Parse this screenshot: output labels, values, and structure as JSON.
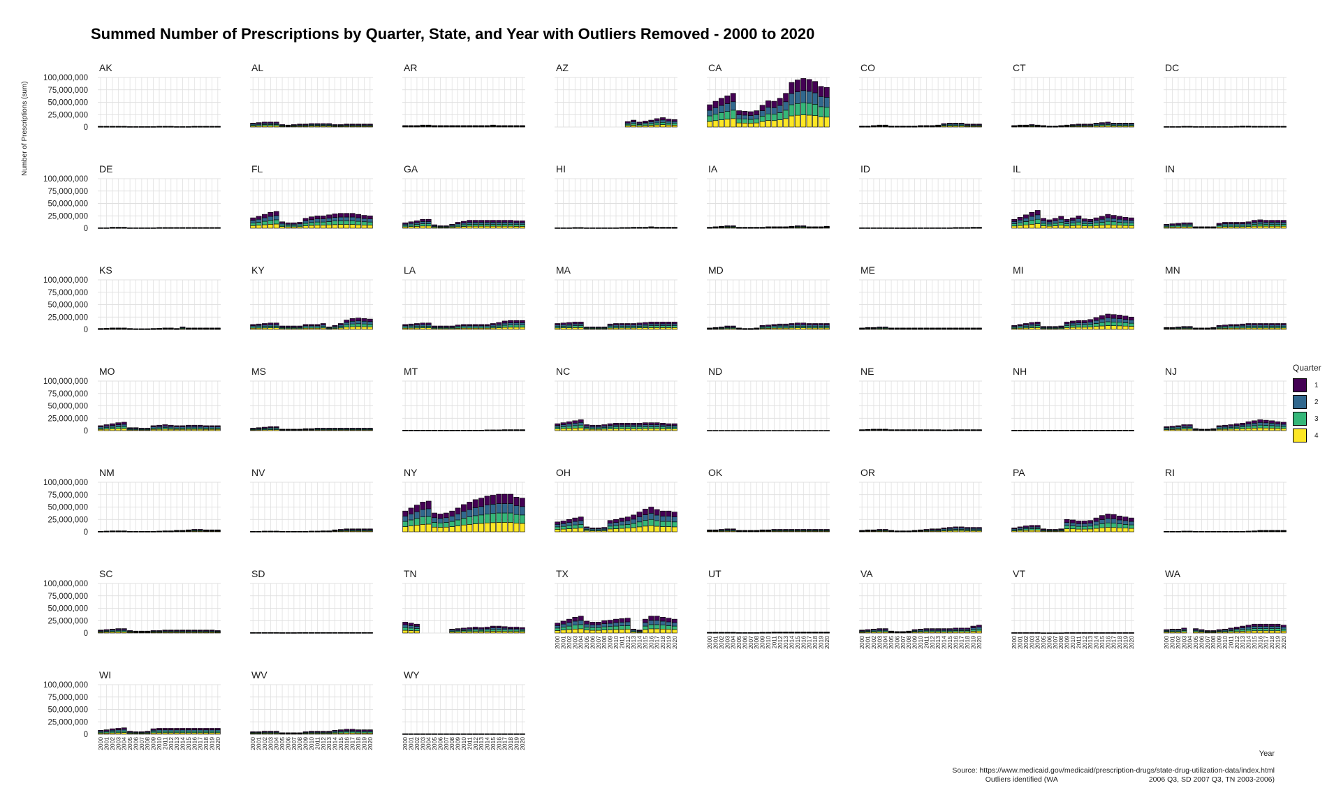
{
  "title": "Summed Number of Prescriptions by Quarter, State, and Year with Outliers Removed - 2000 to 2020",
  "caption": {
    "source": "Source: https://www.medicaid.gov/medicaid/prescription-drugs/state-drug-utilization-data/index.html",
    "outliers_left": "Outliers identified (WA",
    "outliers_right": "2006 Q3, SD 2007 Q3, TN 2003-2006)"
  },
  "chart_data": {
    "type": "bar",
    "stacked": true,
    "faceted": true,
    "xlabel": "Year",
    "ylabel": "Number of Prescriptions (sum)",
    "ylim": [
      0,
      100000000
    ],
    "y_ticks": [
      0,
      25000000,
      50000000,
      75000000,
      100000000
    ],
    "y_tick_labels": [
      "0",
      "25,000,000",
      "50,000,000",
      "75,000,000",
      "100,000,000"
    ],
    "x": [
      "2000",
      "2001",
      "2002",
      "2003",
      "2004",
      "2005",
      "2006",
      "2007",
      "2008",
      "2009",
      "2010",
      "2011",
      "2012",
      "2013",
      "2014",
      "2015",
      "2016",
      "2017",
      "2018",
      "2019",
      "2020"
    ],
    "grid": true,
    "legend": {
      "title": "Quarter",
      "position": "right",
      "entries": [
        {
          "label": "1",
          "color": "#440154"
        },
        {
          "label": "2",
          "color": "#31688e"
        },
        {
          "label": "3",
          "color": "#35b779"
        },
        {
          "label": "4",
          "color": "#fde725"
        }
      ]
    },
    "stack_note": "Each value is the annual total (millions); stacked into four roughly equal quarter segments, quarter 4 at the bottom.",
    "facets": [
      {
        "state": "AK",
        "totals": [
          1.5,
          1.5,
          1.5,
          1.5,
          1.5,
          1,
          1,
          1,
          1,
          1,
          1.5,
          1.5,
          1.5,
          1,
          1,
          1,
          1.5,
          1.5,
          1.5,
          1.5,
          1.5
        ]
      },
      {
        "state": "AL",
        "totals": [
          8,
          9,
          10,
          10,
          10,
          5,
          4,
          5,
          6,
          6,
          7,
          7,
          7,
          7,
          5,
          5,
          6,
          6,
          6,
          6,
          6
        ]
      },
      {
        "state": "AR",
        "totals": [
          3,
          3,
          3,
          4,
          4,
          3,
          3,
          3,
          3,
          3,
          3,
          3,
          3,
          3,
          3,
          4,
          3,
          3,
          3,
          3,
          3
        ]
      },
      {
        "state": "AZ",
        "totals": [
          0,
          0,
          0,
          0,
          0,
          0,
          0,
          0,
          0,
          0,
          0,
          0,
          11,
          14,
          10,
          12,
          14,
          17,
          19,
          16,
          15
        ]
      },
      {
        "state": "CA",
        "totals": [
          45,
          52,
          58,
          63,
          68,
          33,
          32,
          31,
          33,
          44,
          53,
          52,
          58,
          68,
          90,
          95,
          98,
          96,
          92,
          82,
          80
        ]
      },
      {
        "state": "CO",
        "totals": [
          2,
          2,
          3,
          4,
          4,
          2,
          2,
          2,
          2,
          2,
          3,
          3,
          3,
          4,
          7,
          8,
          8,
          8,
          6,
          6,
          6
        ]
      },
      {
        "state": "CT",
        "totals": [
          3,
          4,
          4,
          5,
          4,
          3,
          2,
          2,
          3,
          4,
          5,
          6,
          6,
          6,
          8,
          9,
          10,
          8,
          8,
          8,
          8
        ]
      },
      {
        "state": "DC",
        "totals": [
          1,
          1,
          1,
          1.5,
          1.5,
          1,
          1,
          1,
          1,
          1,
          1,
          1,
          1.5,
          2,
          2,
          1.5,
          1.5,
          1.5,
          1.5,
          1.5,
          1.5
        ]
      },
      {
        "state": "DE",
        "totals": [
          1,
          1,
          2,
          2,
          2,
          1,
          1,
          1,
          1,
          1,
          1.5,
          1.5,
          1.5,
          1.5,
          1.5,
          1.5,
          1.5,
          1.5,
          1.5,
          1.5,
          1.5
        ]
      },
      {
        "state": "FL",
        "totals": [
          21,
          24,
          28,
          32,
          34,
          13,
          11,
          11,
          12,
          20,
          23,
          25,
          25,
          27,
          29,
          30,
          30,
          30,
          28,
          26,
          25
        ]
      },
      {
        "state": "GA",
        "totals": [
          11,
          13,
          15,
          18,
          18,
          7,
          5,
          5,
          8,
          12,
          14,
          16,
          16,
          16,
          16,
          16,
          16,
          16,
          16,
          15,
          15
        ]
      },
      {
        "state": "HI",
        "totals": [
          1,
          1,
          1,
          1.5,
          1.5,
          1,
          1,
          1,
          1,
          1,
          1,
          1.5,
          1.5,
          2,
          2,
          2,
          3,
          2,
          2,
          2,
          2
        ]
      },
      {
        "state": "IA",
        "totals": [
          2,
          3,
          4,
          5,
          5,
          2,
          2,
          2,
          2,
          2,
          3,
          3,
          3,
          3,
          4,
          5,
          5,
          3,
          3,
          3,
          4
        ]
      },
      {
        "state": "ID",
        "totals": [
          1,
          1,
          1,
          1,
          1,
          1,
          0.8,
          0.8,
          0.8,
          1,
          1,
          1,
          1,
          1,
          1,
          1,
          1.5,
          1.5,
          1.5,
          2,
          2
        ]
      },
      {
        "state": "IL",
        "totals": [
          18,
          22,
          27,
          32,
          36,
          20,
          17,
          20,
          24,
          18,
          21,
          25,
          19,
          18,
          21,
          24,
          28,
          26,
          24,
          22,
          21
        ]
      },
      {
        "state": "IN",
        "totals": [
          8,
          9,
          10,
          11,
          11,
          3,
          3,
          3,
          3,
          10,
          12,
          12,
          12,
          12,
          13,
          16,
          17,
          16,
          16,
          16,
          16
        ]
      },
      {
        "state": "KS",
        "totals": [
          2,
          2.5,
          3,
          3,
          3,
          2,
          1.5,
          1.5,
          1.5,
          2,
          2.5,
          3,
          3,
          2,
          5,
          3,
          3,
          3,
          3,
          3,
          3
        ]
      },
      {
        "state": "KY",
        "totals": [
          10,
          11,
          12,
          13,
          13,
          7,
          7,
          7,
          7,
          10,
          10,
          10,
          12,
          5,
          8,
          12,
          19,
          22,
          23,
          22,
          21
        ]
      },
      {
        "state": "LA",
        "totals": [
          10,
          11,
          12,
          13,
          13,
          7,
          7,
          7,
          7,
          9,
          10,
          10,
          10,
          10,
          10,
          12,
          14,
          17,
          18,
          18,
          18
        ]
      },
      {
        "state": "MA",
        "totals": [
          12,
          13,
          14,
          15,
          15,
          5,
          5,
          5,
          5,
          11,
          12,
          12,
          12,
          12,
          13,
          14,
          15,
          15,
          15,
          15,
          15
        ]
      },
      {
        "state": "MD",
        "totals": [
          3,
          4,
          5,
          7,
          7,
          3,
          2,
          2,
          3,
          8,
          9,
          10,
          11,
          11,
          12,
          13,
          13,
          12,
          12,
          12,
          12
        ]
      },
      {
        "state": "ME",
        "totals": [
          3,
          4,
          4,
          5,
          5,
          3,
          3,
          3,
          3,
          3,
          3,
          3,
          3,
          3,
          3,
          3,
          3,
          3,
          3,
          3,
          3
        ]
      },
      {
        "state": "MI",
        "totals": [
          8,
          10,
          12,
          14,
          15,
          6,
          6,
          6,
          7,
          15,
          17,
          18,
          18,
          20,
          24,
          28,
          31,
          30,
          29,
          27,
          25
        ]
      },
      {
        "state": "MN",
        "totals": [
          4,
          4,
          5,
          6,
          6,
          3,
          3,
          3,
          4,
          8,
          9,
          10,
          10,
          11,
          12,
          12,
          12,
          12,
          12,
          12,
          12
        ]
      },
      {
        "state": "MO",
        "totals": [
          10,
          12,
          14,
          16,
          17,
          6,
          6,
          5,
          5,
          10,
          11,
          12,
          11,
          10,
          10,
          11,
          11,
          11,
          10,
          10,
          10
        ]
      },
      {
        "state": "MS",
        "totals": [
          5,
          6,
          7,
          8,
          8,
          3,
          3,
          3,
          3,
          4,
          4,
          5,
          5,
          5,
          5,
          5,
          5,
          5,
          5,
          5,
          5
        ]
      },
      {
        "state": "MT",
        "totals": [
          1,
          1,
          1,
          1,
          1,
          1,
          0.8,
          0.8,
          0.8,
          1,
          1,
          1,
          1,
          1,
          1.5,
          1.5,
          1.5,
          2,
          2,
          2,
          2
        ]
      },
      {
        "state": "NC",
        "totals": [
          14,
          16,
          18,
          20,
          22,
          12,
          11,
          11,
          12,
          14,
          15,
          15,
          15,
          15,
          15,
          16,
          16,
          16,
          15,
          14,
          14
        ]
      },
      {
        "state": "ND",
        "totals": [
          0.5,
          0.5,
          0.5,
          0.5,
          0.5,
          0.5,
          0.5,
          0.5,
          0.5,
          0.5,
          0.5,
          0.5,
          0.5,
          0.5,
          0.5,
          0.5,
          0.5,
          0.5,
          0.5,
          0.5,
          0.5
        ]
      },
      {
        "state": "NE",
        "totals": [
          2,
          2.5,
          3,
          3,
          3,
          2,
          2,
          2,
          2,
          2,
          2,
          2,
          2,
          2,
          1.5,
          1.5,
          2,
          2,
          2,
          2,
          2
        ]
      },
      {
        "state": "NH",
        "totals": [
          0.8,
          0.8,
          0.8,
          0.8,
          0.8,
          0.8,
          0.8,
          0.8,
          0.8,
          0.8,
          0.8,
          0.8,
          0.8,
          0.8,
          0.8,
          0.8,
          0.8,
          0.8,
          0.8,
          0.8,
          0.8
        ]
      },
      {
        "state": "NJ",
        "totals": [
          8,
          9,
          10,
          12,
          12,
          4,
          3,
          3,
          4,
          10,
          11,
          12,
          14,
          15,
          18,
          20,
          22,
          21,
          20,
          18,
          17
        ]
      },
      {
        "state": "NM",
        "totals": [
          1,
          1.5,
          2,
          2,
          2,
          1,
          1,
          1,
          1,
          1,
          1.5,
          2,
          2,
          3,
          3,
          4,
          5,
          5,
          4,
          4,
          4
        ]
      },
      {
        "state": "NV",
        "totals": [
          1,
          1,
          1.5,
          1.5,
          1.5,
          1,
          1,
          1,
          1,
          1,
          1.5,
          1.5,
          2,
          2,
          4,
          5,
          6,
          6,
          6,
          6,
          6
        ]
      },
      {
        "state": "NY",
        "totals": [
          42,
          48,
          54,
          60,
          62,
          38,
          36,
          38,
          42,
          48,
          55,
          60,
          65,
          68,
          72,
          74,
          76,
          76,
          76,
          70,
          68
        ]
      },
      {
        "state": "OH",
        "totals": [
          20,
          22,
          25,
          28,
          30,
          10,
          8,
          8,
          9,
          23,
          25,
          28,
          30,
          34,
          40,
          46,
          50,
          45,
          42,
          42,
          40
        ]
      },
      {
        "state": "OK",
        "totals": [
          4,
          4,
          5,
          6,
          6,
          3,
          3,
          3,
          3,
          4,
          4,
          5,
          5,
          5,
          5,
          5,
          5,
          5,
          5,
          5,
          5
        ]
      },
      {
        "state": "OR",
        "totals": [
          3,
          4,
          4,
          5,
          5,
          3,
          2,
          2,
          2,
          3,
          4,
          5,
          6,
          6,
          8,
          9,
          10,
          10,
          9,
          9,
          9
        ]
      },
      {
        "state": "PA",
        "totals": [
          8,
          10,
          12,
          13,
          13,
          6,
          5,
          5,
          6,
          25,
          24,
          22,
          22,
          23,
          28,
          33,
          36,
          35,
          32,
          30,
          28
        ]
      },
      {
        "state": "RI",
        "totals": [
          1,
          1,
          1,
          1.5,
          1.5,
          1,
          1,
          1,
          1,
          1,
          1,
          1,
          1,
          1,
          1.5,
          2,
          3,
          3,
          3,
          3,
          3
        ]
      },
      {
        "state": "SC",
        "totals": [
          6,
          7,
          8,
          9,
          9,
          5,
          4,
          4,
          4,
          5,
          5,
          6,
          6,
          6,
          6,
          6,
          6,
          6,
          6,
          6,
          5
        ]
      },
      {
        "state": "SD",
        "totals": [
          1,
          1,
          1,
          1,
          1,
          0.8,
          0.8,
          0.8,
          1,
          1,
          1,
          1,
          1,
          1,
          1,
          1,
          1,
          1,
          1,
          1,
          1
        ]
      },
      {
        "state": "TN",
        "totals": [
          22,
          20,
          18,
          0,
          0,
          0,
          0,
          0,
          8,
          9,
          10,
          11,
          12,
          11,
          12,
          14,
          14,
          13,
          12,
          12,
          11
        ]
      },
      {
        "state": "TX",
        "totals": [
          20,
          24,
          28,
          32,
          34,
          24,
          22,
          22,
          25,
          26,
          28,
          29,
          30,
          8,
          6,
          28,
          34,
          34,
          32,
          30,
          28
        ]
      },
      {
        "state": "UT",
        "totals": [
          1.5,
          1.5,
          1.5,
          1.5,
          1.5,
          1,
          1,
          1,
          1,
          1.5,
          1.5,
          2,
          2,
          2,
          2,
          2,
          2,
          2,
          2,
          2,
          2
        ]
      },
      {
        "state": "VA",
        "totals": [
          6,
          7,
          8,
          9,
          9,
          4,
          3,
          3,
          4,
          7,
          8,
          9,
          9,
          9,
          9,
          9,
          10,
          10,
          10,
          14,
          16
        ]
      },
      {
        "state": "VT",
        "totals": [
          0.8,
          0.8,
          0.8,
          0.8,
          0.8,
          0.5,
          0.5,
          0.5,
          0.5,
          0.8,
          0.8,
          0.8,
          0.8,
          0.8,
          0.8,
          0.8,
          0.8,
          0.8,
          0.8,
          0.8,
          0.8
        ]
      },
      {
        "state": "WA",
        "totals": [
          7,
          8,
          8,
          10,
          0,
          9,
          7,
          5,
          5,
          7,
          8,
          10,
          12,
          14,
          16,
          18,
          18,
          18,
          18,
          18,
          16
        ]
      },
      {
        "state": "WI",
        "totals": [
          8,
          9,
          11,
          12,
          13,
          6,
          5,
          5,
          6,
          11,
          12,
          12,
          12,
          12,
          12,
          12,
          12,
          12,
          12,
          12,
          12
        ]
      },
      {
        "state": "WV",
        "totals": [
          5,
          5,
          6,
          6,
          6,
          3,
          3,
          3,
          3,
          5,
          6,
          6,
          6,
          6,
          8,
          9,
          10,
          10,
          9,
          9,
          9
        ]
      },
      {
        "state": "WY",
        "totals": [
          1,
          1,
          1,
          1,
          1,
          1,
          1,
          1,
          1,
          1,
          1,
          1,
          1,
          1,
          1,
          1,
          1,
          1,
          1,
          1,
          1
        ]
      }
    ]
  }
}
